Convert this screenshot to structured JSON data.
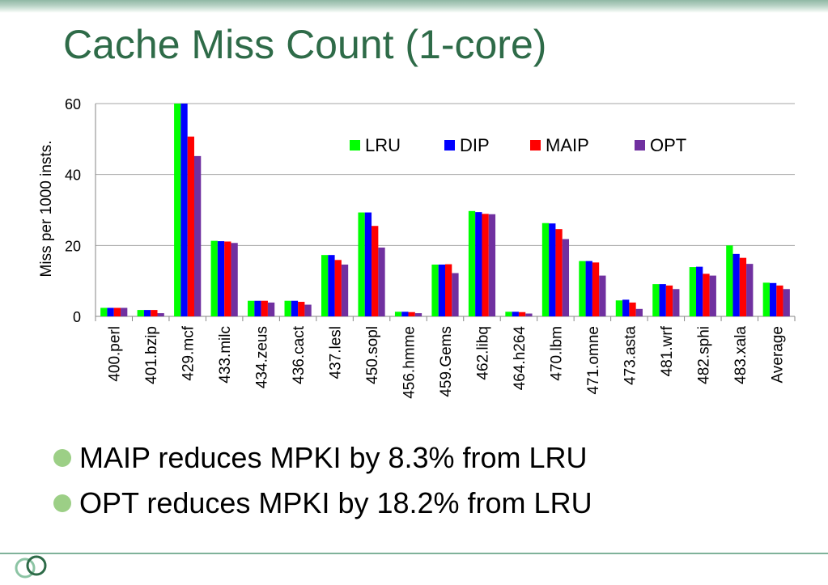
{
  "slide": {
    "title": "Cache Miss Count (1-core)",
    "bullets": [
      "MAIP reduces MPKI by 8.3% from LRU",
      "OPT reduces MPKI by 18.2% from LRU"
    ],
    "accent_color": "#2e6b48",
    "bullet_color": "#9ccf86"
  },
  "chart_data": {
    "type": "bar",
    "ylabel": "Miss per 1000 insts.",
    "xlabel": "",
    "ylim": [
      0,
      60
    ],
    "yticks": [
      0,
      20,
      40,
      60
    ],
    "grid": true,
    "legend_position": "top-right",
    "categories": [
      "400.perl",
      "401.bzip",
      "429.mcf",
      "433.milc",
      "434.zeus",
      "436.cact",
      "437.lesl",
      "450.sopl",
      "456.hmme",
      "459.Gems",
      "462.libq",
      "464.h264",
      "470.lbm",
      "471.omne",
      "473.asta",
      "481.wrf",
      "482.sphi",
      "483.xala",
      "Average"
    ],
    "series": [
      {
        "name": "LRU",
        "color": "#00ff00",
        "values": [
          2.4,
          1.8,
          60.0,
          21.3,
          4.4,
          4.4,
          17.3,
          29.3,
          1.3,
          14.6,
          29.7,
          1.3,
          26.3,
          15.6,
          4.5,
          9.1,
          13.9,
          20.0,
          9.5
        ]
      },
      {
        "name": "DIP",
        "color": "#0000ff",
        "values": [
          2.4,
          1.8,
          60.0,
          21.2,
          4.4,
          4.4,
          17.3,
          29.3,
          1.3,
          14.6,
          29.4,
          1.3,
          26.2,
          15.6,
          4.7,
          9.1,
          14.0,
          17.6,
          9.4
        ]
      },
      {
        "name": "MAIP",
        "color": "#ff0000",
        "values": [
          2.4,
          1.8,
          50.7,
          21.1,
          4.4,
          4.1,
          15.9,
          25.5,
          1.2,
          14.7,
          28.9,
          1.2,
          24.6,
          15.2,
          3.9,
          8.7,
          12.0,
          16.5,
          8.7
        ]
      },
      {
        "name": "OPT",
        "color": "#7030a0",
        "values": [
          2.4,
          0.9,
          45.2,
          20.7,
          3.9,
          3.3,
          14.6,
          19.4,
          0.9,
          12.2,
          28.8,
          0.8,
          21.8,
          11.5,
          2.1,
          7.7,
          11.5,
          14.8,
          7.7
        ]
      }
    ]
  }
}
